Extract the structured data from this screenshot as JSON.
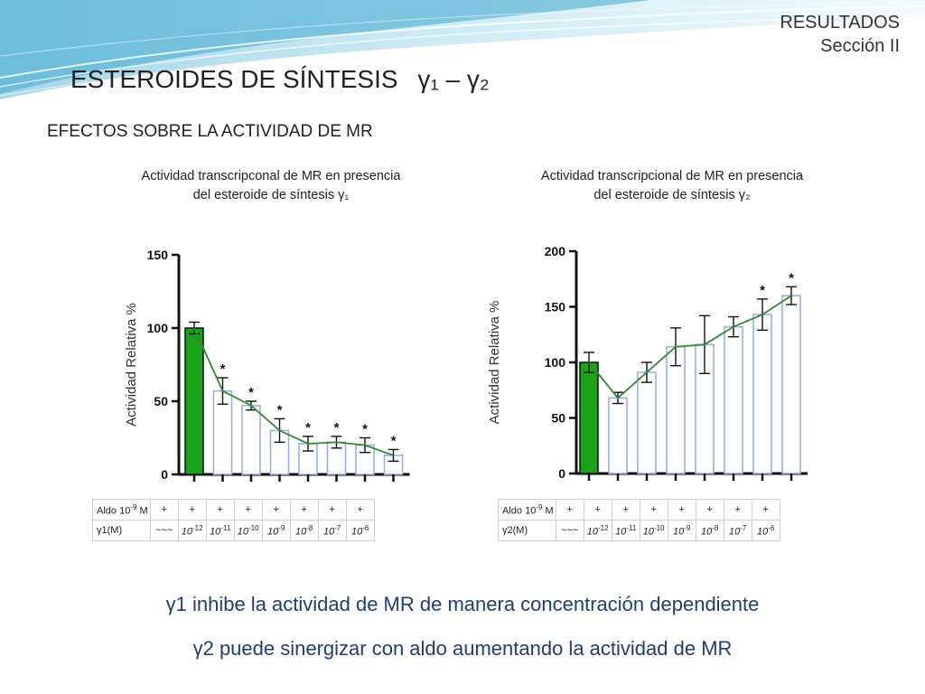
{
  "header": {
    "line1": "RESULTADOS",
    "line2": "Sección II"
  },
  "title": {
    "main": "ESTEROIDES DE SÍNTESIS",
    "symbols": "γ₁ – γ₂"
  },
  "subtitle": "EFECTOS SOBRE LA ACTIVIDAD DE MR",
  "chart_data": [
    {
      "type": "bar",
      "title_line1": "Actividad transcripconal de MR en presencia",
      "title_line2": "del esteroide de síntesis γ₁",
      "ylabel": "Actividad Relativa %",
      "ylim": [
        0,
        150
      ],
      "yticks": [
        "0",
        "50",
        "100",
        "150"
      ],
      "tick_values": [
        0,
        50,
        100,
        150
      ],
      "values": [
        100,
        57,
        47,
        30,
        21,
        22,
        20,
        13
      ],
      "errors": [
        4,
        9,
        3,
        8,
        5,
        4,
        5,
        4
      ],
      "significant": [
        false,
        true,
        true,
        true,
        true,
        true,
        true,
        true
      ],
      "star": "*",
      "colors": {
        "control": "#1aa31a",
        "treated_edge": "#9aa8e8",
        "line": "#2e8b2e"
      },
      "table": {
        "row1_label": "Aldo 10",
        "row1_exp": "-9",
        "row1_unit": " M",
        "row1": [
          "+",
          "+",
          "+",
          "+",
          "+",
          "+",
          "+",
          "+"
        ],
        "row2_label": "γ1(M)",
        "row2_first": "~~~",
        "row2_base": "10",
        "row2_exps": [
          "-12",
          "-11",
          "-10",
          "-9",
          "-8",
          "-7",
          "-6"
        ]
      }
    },
    {
      "type": "bar",
      "title_line1": "Actividad transcripcional de MR en presencia",
      "title_line2": "del esteroide de síntesis γ₂",
      "ylabel": "Actividad Relativa %",
      "ylim": [
        0,
        200
      ],
      "yticks": [
        "0",
        "50",
        "100",
        "150",
        "200"
      ],
      "tick_values": [
        0,
        50,
        100,
        150,
        200
      ],
      "values": [
        100,
        68,
        91,
        114,
        116,
        132,
        143,
        160
      ],
      "errors": [
        9,
        5,
        9,
        17,
        26,
        9,
        14,
        8
      ],
      "significant": [
        false,
        false,
        false,
        false,
        false,
        false,
        true,
        true
      ],
      "star": "*",
      "colors": {
        "control": "#1aa31a",
        "treated_edge": "#9aa8e8",
        "line": "#2e8b2e"
      },
      "table": {
        "row1_label": "Aldo 10",
        "row1_exp": "-9",
        "row1_unit": " M",
        "row1": [
          "+",
          "+",
          "+",
          "+",
          "+",
          "+",
          "+",
          "+"
        ],
        "row2_label": "γ2(M)",
        "row2_first": "~~~",
        "row2_base": "10",
        "row2_exps": [
          "-12",
          "-11",
          "-10",
          "-9",
          "-8",
          "-7",
          "-6"
        ]
      }
    }
  ],
  "conclusions": {
    "line1_sym": "γ1",
    "line1": " inhibe la actividad de MR de manera concentración dependiente",
    "line2_sym": "γ2",
    "line2": " puede sinergizar con aldo aumentando la actividad  de MR"
  }
}
